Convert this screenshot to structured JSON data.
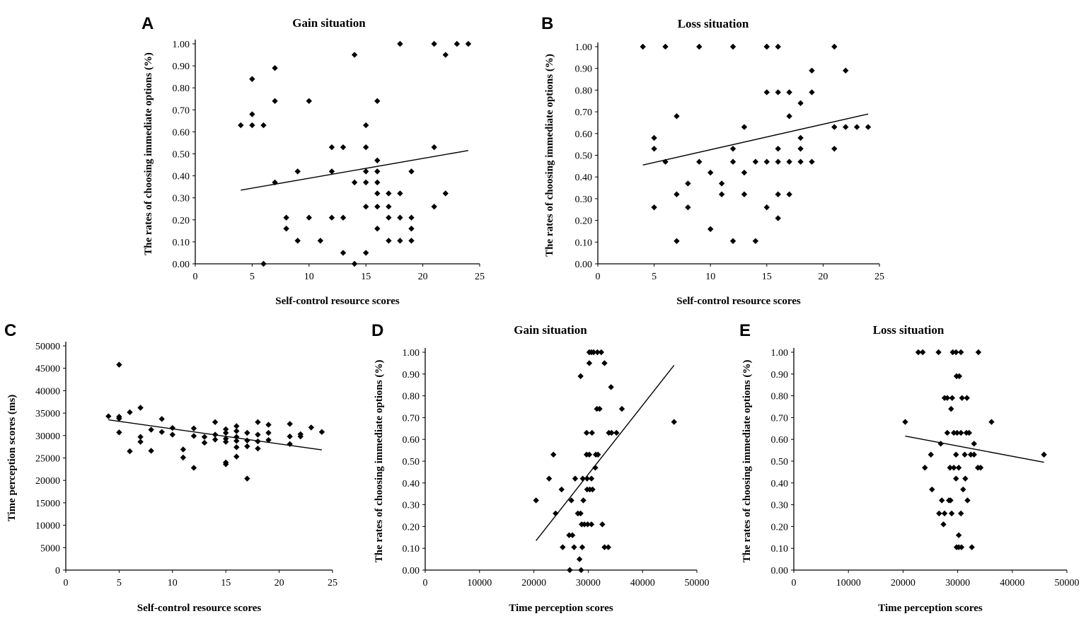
{
  "chart_data": [
    {
      "panel": "A",
      "type": "scatter",
      "title": "Gain situation",
      "xlabel": "Self-control resource scores",
      "ylabel": "The rates of choosing immediate options  (%)",
      "xlim": [
        0,
        25
      ],
      "ylim": [
        0,
        1
      ],
      "xticks": [
        "0",
        "5",
        "10",
        "15",
        "20",
        "25"
      ],
      "yticks": [
        "0.00",
        "0.10",
        "0.20",
        "0.30",
        "0.40",
        "0.50",
        "0.60",
        "0.70",
        "0.80",
        "0.90",
        "1.00"
      ],
      "trendline": [
        [
          4,
          0.335
        ],
        [
          24,
          0.515
        ]
      ],
      "points": [
        [
          4,
          0.63
        ],
        [
          5,
          0.63
        ],
        [
          5,
          0.68
        ],
        [
          5,
          0.84
        ],
        [
          6,
          0.63
        ],
        [
          6,
          0.0
        ],
        [
          7,
          0.37
        ],
        [
          7,
          0.74
        ],
        [
          7,
          0.89
        ],
        [
          8,
          0.21
        ],
        [
          8,
          0.16
        ],
        [
          9,
          0.42
        ],
        [
          9,
          0.105
        ],
        [
          10,
          0.74
        ],
        [
          10,
          0.21
        ],
        [
          11,
          0.105
        ],
        [
          12,
          0.53
        ],
        [
          12,
          0.42
        ],
        [
          12,
          0.21
        ],
        [
          13,
          0.53
        ],
        [
          13,
          0.21
        ],
        [
          13,
          0.05
        ],
        [
          14,
          0.95
        ],
        [
          14,
          0.37
        ],
        [
          14,
          0.0
        ],
        [
          15,
          0.63
        ],
        [
          15,
          0.53
        ],
        [
          15,
          0.42
        ],
        [
          15,
          0.37
        ],
        [
          15,
          0.26
        ],
        [
          15,
          0.05
        ],
        [
          16,
          0.74
        ],
        [
          16,
          0.47
        ],
        [
          16,
          0.42
        ],
        [
          16,
          0.37
        ],
        [
          16,
          0.32
        ],
        [
          16,
          0.26
        ],
        [
          16,
          0.16
        ],
        [
          17,
          0.32
        ],
        [
          17,
          0.26
        ],
        [
          17,
          0.21
        ],
        [
          17,
          0.105
        ],
        [
          18,
          1.0
        ],
        [
          18,
          0.32
        ],
        [
          18,
          0.21
        ],
        [
          18,
          0.105
        ],
        [
          19,
          0.42
        ],
        [
          19,
          0.21
        ],
        [
          19,
          0.16
        ],
        [
          19,
          0.105
        ],
        [
          21,
          1.0
        ],
        [
          21,
          0.53
        ],
        [
          21,
          0.26
        ],
        [
          22,
          0.95
        ],
        [
          22,
          0.32
        ],
        [
          23,
          1.0
        ],
        [
          24,
          1.0
        ]
      ]
    },
    {
      "panel": "B",
      "type": "scatter",
      "title": "Loss situation",
      "xlabel": "Self-control resource scores",
      "ylabel": "The rates of choosing immediate options  (%)",
      "xlim": [
        0,
        25
      ],
      "ylim": [
        0,
        1
      ],
      "xticks": [
        "0",
        "5",
        "10",
        "15",
        "20",
        "25"
      ],
      "yticks": [
        "0.00",
        "0.10",
        "0.20",
        "0.30",
        "0.40",
        "0.50",
        "0.60",
        "0.70",
        "0.80",
        "0.90",
        "1.00"
      ],
      "trendline": [
        [
          4,
          0.455
        ],
        [
          24,
          0.69
        ]
      ],
      "points": [
        [
          4,
          1.0
        ],
        [
          5,
          0.58
        ],
        [
          5,
          0.53
        ],
        [
          5,
          0.26
        ],
        [
          6,
          1.0
        ],
        [
          6,
          0.47
        ],
        [
          7,
          0.68
        ],
        [
          7,
          0.32
        ],
        [
          7,
          0.105
        ],
        [
          8,
          0.37
        ],
        [
          8,
          0.26
        ],
        [
          9,
          1.0
        ],
        [
          9,
          0.47
        ],
        [
          10,
          0.42
        ],
        [
          10,
          0.16
        ],
        [
          11,
          0.37
        ],
        [
          11,
          0.32
        ],
        [
          12,
          1.0
        ],
        [
          12,
          0.53
        ],
        [
          12,
          0.47
        ],
        [
          12,
          0.105
        ],
        [
          13,
          0.63
        ],
        [
          13,
          0.42
        ],
        [
          13,
          0.32
        ],
        [
          14,
          0.47
        ],
        [
          14,
          0.105
        ],
        [
          15,
          1.0
        ],
        [
          15,
          1.0
        ],
        [
          15,
          0.79
        ],
        [
          15,
          0.47
        ],
        [
          15,
          0.26
        ],
        [
          16,
          1.0
        ],
        [
          16,
          0.79
        ],
        [
          16,
          0.53
        ],
        [
          16,
          0.47
        ],
        [
          16,
          0.32
        ],
        [
          16,
          0.21
        ],
        [
          17,
          0.79
        ],
        [
          17,
          0.68
        ],
        [
          17,
          0.47
        ],
        [
          17,
          0.32
        ],
        [
          18,
          0.74
        ],
        [
          18,
          0.58
        ],
        [
          18,
          0.53
        ],
        [
          18,
          0.47
        ],
        [
          19,
          0.89
        ],
        [
          19,
          0.79
        ],
        [
          19,
          0.47
        ],
        [
          21,
          1.0
        ],
        [
          21,
          0.63
        ],
        [
          21,
          0.53
        ],
        [
          22,
          0.89
        ],
        [
          22,
          0.63
        ],
        [
          23,
          0.63
        ],
        [
          24,
          0.63
        ]
      ]
    },
    {
      "panel": "C",
      "type": "scatter",
      "title": "",
      "xlabel": "Self-control resource scores",
      "ylabel": "Time perception scores  (ms)",
      "xlim": [
        0,
        25
      ],
      "ylim": [
        0,
        50000
      ],
      "xticks": [
        "0",
        "5",
        "10",
        "15",
        "20",
        "25"
      ],
      "yticks": [
        "0",
        "5000",
        "10000",
        "15000",
        "20000",
        "25000",
        "30000",
        "35000",
        "40000",
        "45000",
        "50000"
      ],
      "trendline": [
        [
          4,
          33500
        ],
        [
          24,
          26800
        ]
      ],
      "points": [
        [
          4,
          34300
        ],
        [
          5,
          45800
        ],
        [
          5,
          34200
        ],
        [
          5,
          33800
        ],
        [
          5,
          30700
        ],
        [
          6,
          35200
        ],
        [
          6,
          26500
        ],
        [
          7,
          36200
        ],
        [
          7,
          29700
        ],
        [
          7,
          28600
        ],
        [
          8,
          31300
        ],
        [
          8,
          26600
        ],
        [
          9,
          33700
        ],
        [
          9,
          30800
        ],
        [
          10,
          31700
        ],
        [
          10,
          30200
        ],
        [
          11,
          26900
        ],
        [
          11,
          25100
        ],
        [
          12,
          31600
        ],
        [
          12,
          29900
        ],
        [
          12,
          22800
        ],
        [
          13,
          29700
        ],
        [
          13,
          28400
        ],
        [
          14,
          33000
        ],
        [
          14,
          30200
        ],
        [
          14,
          29100
        ],
        [
          15,
          31400
        ],
        [
          15,
          30600
        ],
        [
          15,
          29300
        ],
        [
          15,
          28600
        ],
        [
          15,
          24000
        ],
        [
          15,
          23600
        ],
        [
          16,
          32100
        ],
        [
          16,
          31000
        ],
        [
          16,
          29700
        ],
        [
          16,
          28800
        ],
        [
          16,
          27400
        ],
        [
          16,
          25300
        ],
        [
          17,
          30600
        ],
        [
          17,
          28900
        ],
        [
          17,
          27600
        ],
        [
          17,
          20400
        ],
        [
          18,
          33000
        ],
        [
          18,
          30200
        ],
        [
          18,
          28700
        ],
        [
          18,
          27100
        ],
        [
          19,
          32400
        ],
        [
          19,
          30600
        ],
        [
          19,
          29000
        ],
        [
          21,
          32600
        ],
        [
          21,
          29800
        ],
        [
          21,
          28100
        ],
        [
          22,
          30300
        ],
        [
          22,
          29800
        ],
        [
          23,
          31800
        ],
        [
          24,
          30800
        ]
      ]
    },
    {
      "panel": "D",
      "type": "scatter",
      "title": "Gain situation",
      "xlabel": "Time perception scores",
      "ylabel": "The rates of choosing immediate options  (%)",
      "xlim": [
        0,
        50000
      ],
      "ylim": [
        0,
        1
      ],
      "xticks": [
        "0",
        "10000",
        "20000",
        "30000",
        "40000",
        "50000"
      ],
      "yticks": [
        "0.00",
        "0.10",
        "0.20",
        "0.30",
        "0.40",
        "0.50",
        "0.60",
        "0.70",
        "0.80",
        "0.90",
        "1.00"
      ],
      "trendline": [
        [
          20400,
          0.135
        ],
        [
          45800,
          0.94
        ]
      ],
      "points": [
        [
          20400,
          0.32
        ],
        [
          22800,
          0.42
        ],
        [
          23600,
          0.53
        ],
        [
          24000,
          0.26
        ],
        [
          25100,
          0.37
        ],
        [
          25300,
          0.105
        ],
        [
          26500,
          0.16
        ],
        [
          26600,
          0.0
        ],
        [
          26900,
          0.32
        ],
        [
          27100,
          0.16
        ],
        [
          27400,
          0.105
        ],
        [
          27600,
          0.42
        ],
        [
          28100,
          0.26
        ],
        [
          28400,
          0.05
        ],
        [
          28600,
          0.89
        ],
        [
          28600,
          0.26
        ],
        [
          28700,
          0.0
        ],
        [
          28800,
          0.21
        ],
        [
          28900,
          0.105
        ],
        [
          29000,
          0.42
        ],
        [
          29100,
          0.32
        ],
        [
          29300,
          0.21
        ],
        [
          29700,
          0.63
        ],
        [
          29700,
          0.53
        ],
        [
          29800,
          0.42
        ],
        [
          29800,
          0.37
        ],
        [
          29900,
          0.21
        ],
        [
          30200,
          1.0
        ],
        [
          30200,
          0.95
        ],
        [
          30200,
          0.53
        ],
        [
          30300,
          0.37
        ],
        [
          30600,
          1.0
        ],
        [
          30600,
          0.42
        ],
        [
          30600,
          0.21
        ],
        [
          30700,
          0.63
        ],
        [
          30800,
          0.37
        ],
        [
          31000,
          1.0
        ],
        [
          31300,
          0.47
        ],
        [
          31400,
          0.53
        ],
        [
          31600,
          0.74
        ],
        [
          31700,
          1.0
        ],
        [
          31800,
          0.53
        ],
        [
          32100,
          0.74
        ],
        [
          32400,
          1.0
        ],
        [
          32600,
          0.21
        ],
        [
          33000,
          0.95
        ],
        [
          33000,
          0.105
        ],
        [
          33700,
          0.105
        ],
        [
          33800,
          0.63
        ],
        [
          34200,
          0.84
        ],
        [
          34300,
          0.63
        ],
        [
          35200,
          0.63
        ],
        [
          36200,
          0.74
        ],
        [
          45800,
          0.68
        ]
      ]
    },
    {
      "panel": "E",
      "type": "scatter",
      "title": "Loss situation",
      "xlabel": "Time perception scores",
      "ylabel": "The rates of choosing immediate options  (%)",
      "xlim": [
        0,
        50000
      ],
      "ylim": [
        0,
        1
      ],
      "xticks": [
        "0",
        "10000",
        "20000",
        "30000",
        "40000",
        "50000"
      ],
      "yticks": [
        "0.00",
        "0.10",
        "0.20",
        "0.30",
        "0.40",
        "0.50",
        "0.60",
        "0.70",
        "0.80",
        "0.90",
        "1.00"
      ],
      "trendline": [
        [
          20400,
          0.615
        ],
        [
          45800,
          0.495
        ]
      ],
      "points": [
        [
          20400,
          0.68
        ],
        [
          22800,
          1.0
        ],
        [
          23600,
          1.0
        ],
        [
          24000,
          0.47
        ],
        [
          25100,
          0.53
        ],
        [
          25300,
          0.37
        ],
        [
          26500,
          1.0
        ],
        [
          26600,
          0.26
        ],
        [
          26900,
          0.58
        ],
        [
          27100,
          0.32
        ],
        [
          27400,
          0.21
        ],
        [
          27600,
          0.79
        ],
        [
          27600,
          0.26
        ],
        [
          28100,
          0.79
        ],
        [
          28100,
          0.63
        ],
        [
          28400,
          0.32
        ],
        [
          28600,
          0.47
        ],
        [
          28700,
          0.32
        ],
        [
          28800,
          0.74
        ],
        [
          28900,
          0.26
        ],
        [
          29000,
          0.79
        ],
        [
          29100,
          1.0
        ],
        [
          29300,
          0.63
        ],
        [
          29300,
          0.47
        ],
        [
          29700,
          1.0
        ],
        [
          29700,
          0.53
        ],
        [
          29700,
          0.42
        ],
        [
          29800,
          0.89
        ],
        [
          29800,
          0.105
        ],
        [
          29900,
          0.63
        ],
        [
          30200,
          0.47
        ],
        [
          30200,
          0.16
        ],
        [
          30200,
          0.105
        ],
        [
          30300,
          0.89
        ],
        [
          30600,
          1.0
        ],
        [
          30600,
          0.63
        ],
        [
          30600,
          0.26
        ],
        [
          30700,
          0.105
        ],
        [
          30800,
          0.79
        ],
        [
          31000,
          0.37
        ],
        [
          31300,
          0.53
        ],
        [
          31400,
          0.42
        ],
        [
          31600,
          0.63
        ],
        [
          31700,
          0.79
        ],
        [
          31800,
          0.32
        ],
        [
          32100,
          0.63
        ],
        [
          32400,
          0.53
        ],
        [
          32600,
          0.105
        ],
        [
          33000,
          0.58
        ],
        [
          33000,
          0.53
        ],
        [
          33700,
          0.47
        ],
        [
          33800,
          1.0
        ],
        [
          34200,
          0.47
        ],
        [
          36200,
          0.68
        ],
        [
          45800,
          0.53
        ]
      ]
    }
  ]
}
